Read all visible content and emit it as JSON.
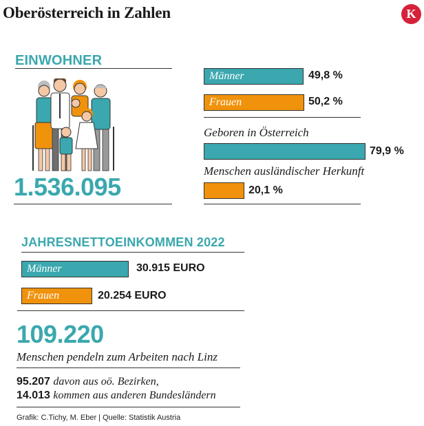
{
  "title": "Oberösterreich in Zahlen",
  "logo_letter": "K",
  "colors": {
    "teal": "#3aa8ae",
    "orange": "#f0920c",
    "logo_red": "#d6213a"
  },
  "population": {
    "heading": "EINWOHNER",
    "total": "1.536.095",
    "illustration": "family-icon"
  },
  "income": {
    "heading": "JAHRESNETTOEINKOMMEN 2022"
  },
  "commuters": {
    "total": "109.220",
    "caption": "Menschen pendeln zum Arbeiten nach Linz",
    "line1_num": "95.207",
    "line1_text": "davon aus oö. Bezirken,",
    "line2_num": "14.013",
    "line2_text": "kommen aus anderen Bundesländern"
  },
  "source": "Grafik: C.Tichy, M. Eber | Quelle: Statistik Austria",
  "chart_data": [
    {
      "type": "bar",
      "categories": [
        "Männer",
        "Frauen"
      ],
      "values": [
        49.8,
        50.2
      ],
      "value_labels": [
        "49,8 %",
        "50,2 %"
      ],
      "colors": [
        "#3aa8ae",
        "#f0920c"
      ],
      "max": 100
    },
    {
      "type": "bar",
      "categories": [
        "Geboren in Österreich",
        "Menschen ausländischer Herkunft"
      ],
      "values": [
        79.9,
        20.1
      ],
      "value_labels": [
        "79,9 %",
        "20,1 %"
      ],
      "colors": [
        "#3aa8ae",
        "#f0920c"
      ],
      "max": 100
    },
    {
      "type": "bar",
      "categories": [
        "Männer",
        "Frauen"
      ],
      "values": [
        30915,
        20254
      ],
      "value_labels": [
        "30.915 EURO",
        "20.254 EURO"
      ],
      "colors": [
        "#3aa8ae",
        "#f0920c"
      ],
      "max": 30915
    }
  ]
}
